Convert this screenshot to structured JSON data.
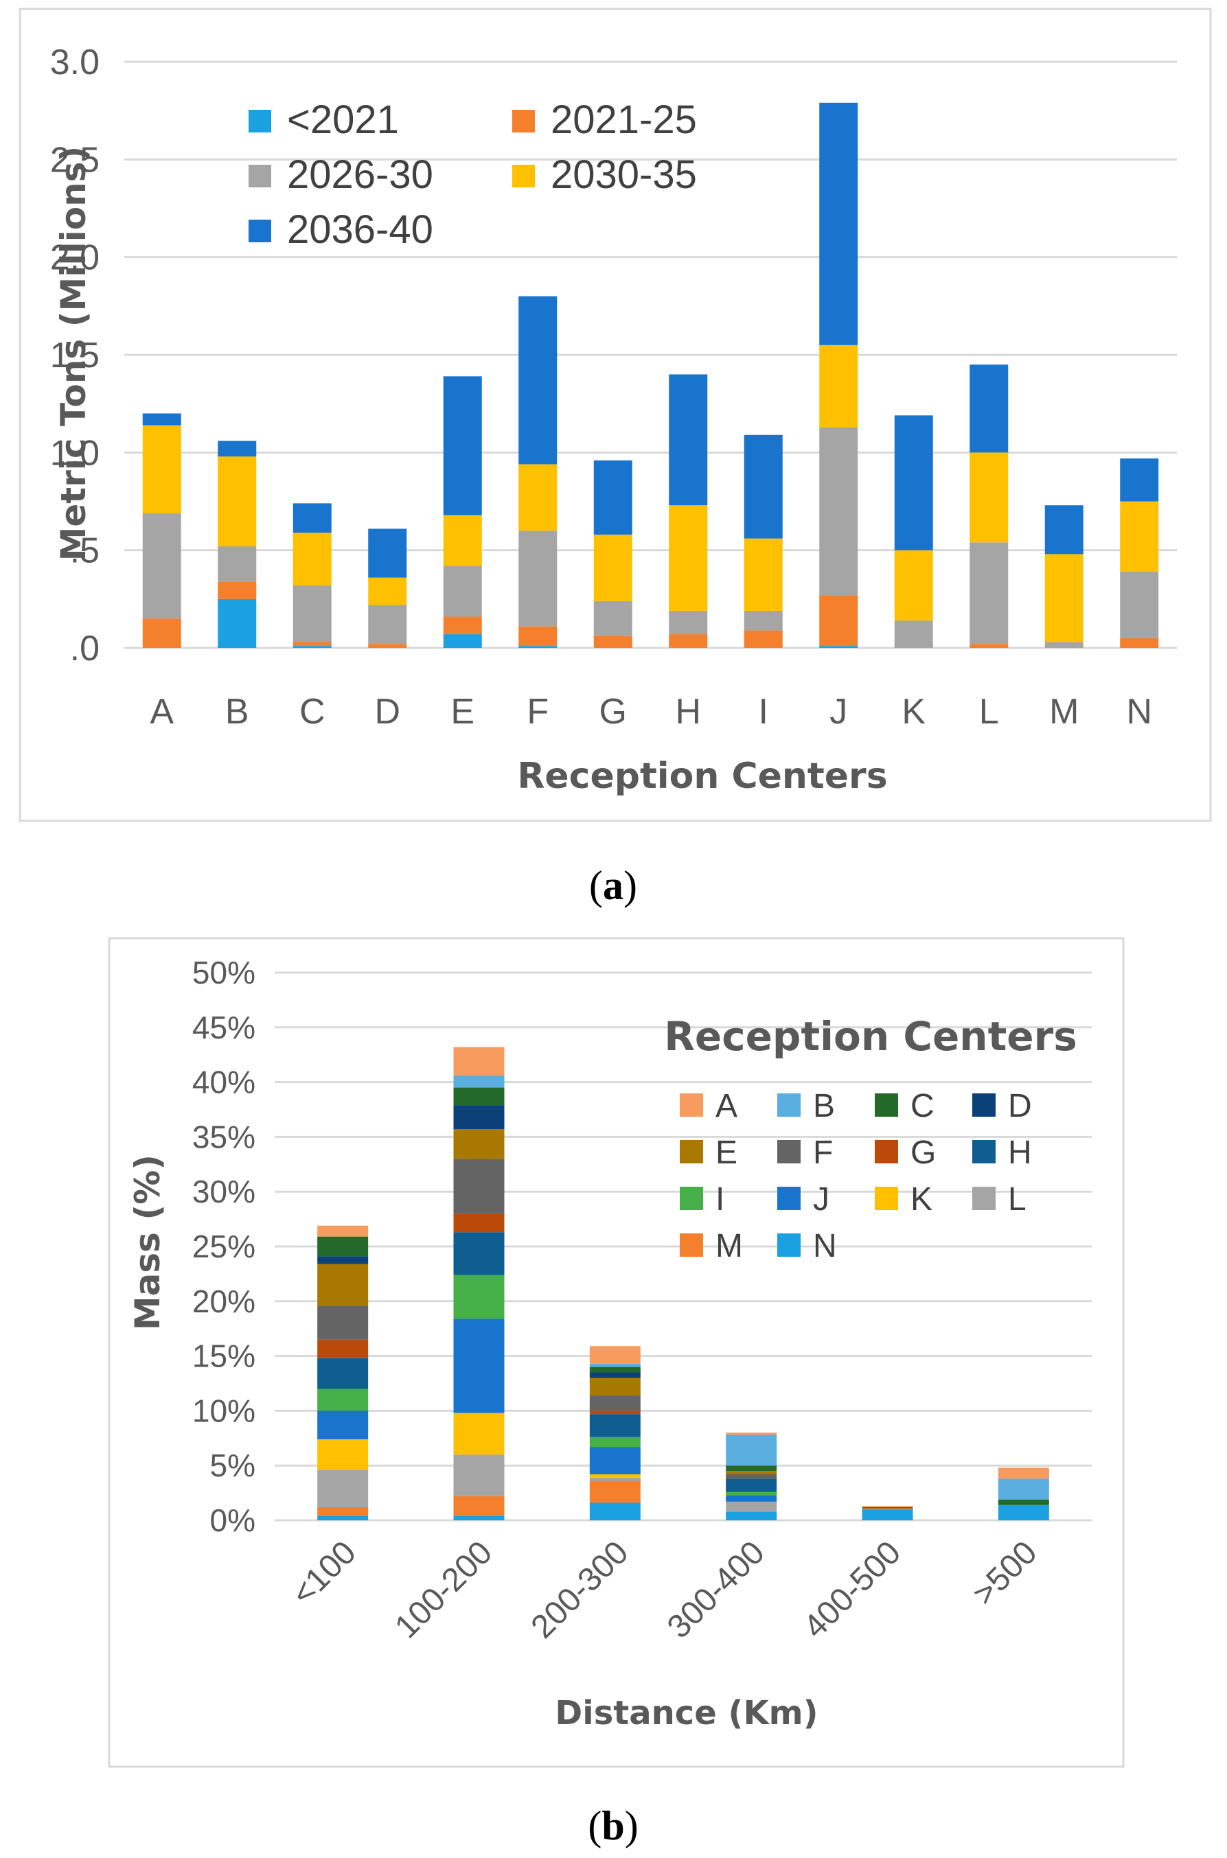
{
  "captions": {
    "a_letter": "a",
    "b_letter": "b",
    "open": "(",
    "close": ")"
  },
  "chart_data": [
    {
      "id": "a",
      "type": "bar",
      "stacked": true,
      "ylabel": "Metric Tons (Millions)",
      "xlabel": "Reception Centers",
      "ylim": [
        0,
        3.0
      ],
      "yticks": [
        ".0",
        ".5",
        "1.0",
        "1.5",
        "2.0",
        "2.5",
        "3.0"
      ],
      "grid": true,
      "legend_position": "top-left",
      "categories": [
        "A",
        "B",
        "C",
        "D",
        "E",
        "F",
        "G",
        "H",
        "I",
        "J",
        "K",
        "L",
        "M",
        "N"
      ],
      "series": [
        {
          "name": "<2021",
          "color": "#1BA1E2",
          "values": [
            0,
            0.25,
            0.01,
            0,
            0.07,
            0.01,
            0,
            0,
            0,
            0.01,
            0,
            0,
            0,
            0
          ]
        },
        {
          "name": "2021-25",
          "color": "#F47F2C",
          "values": [
            0.15,
            0.09,
            0.02,
            0.02,
            0.09,
            0.1,
            0.06,
            0.07,
            0.09,
            0.26,
            0,
            0.02,
            0,
            0.05
          ]
        },
        {
          "name": "2026-30",
          "color": "#A5A5A5",
          "values": [
            0.54,
            0.18,
            0.29,
            0.2,
            0.26,
            0.49,
            0.18,
            0.12,
            0.1,
            0.86,
            0.14,
            0.52,
            0.03,
            0.34
          ]
        },
        {
          "name": "2030-35",
          "color": "#FFC000",
          "values": [
            0.45,
            0.46,
            0.27,
            0.14,
            0.26,
            0.34,
            0.34,
            0.54,
            0.37,
            0.42,
            0.36,
            0.46,
            0.45,
            0.36
          ]
        },
        {
          "name": "2036-40",
          "color": "#1874CD",
          "values": [
            0.06,
            0.08,
            0.15,
            0.25,
            0.71,
            0.86,
            0.38,
            0.67,
            0.53,
            1.24,
            0.69,
            0.45,
            0.25,
            0.22
          ]
        }
      ]
    },
    {
      "id": "b",
      "type": "bar",
      "stacked": true,
      "ylabel": "Mass (%)",
      "xlabel": "Distance (Km)",
      "ylim": [
        0,
        50
      ],
      "yticks": [
        "0%",
        "5%",
        "10%",
        "15%",
        "20%",
        "25%",
        "30%",
        "35%",
        "40%",
        "45%",
        "50%"
      ],
      "grid": true,
      "legend_title": "Reception Centers",
      "legend_position": "top-right",
      "categories": [
        "<100",
        "100-200",
        "200-300",
        "300-400",
        "400-500",
        ">500"
      ],
      "series": [
        {
          "name": "N",
          "color": "#1BA1E2",
          "values": [
            0.4,
            0.4,
            1.6,
            0.8,
            1.0,
            1.4
          ]
        },
        {
          "name": "M",
          "color": "#F47F2C",
          "values": [
            0.8,
            1.8,
            2.0,
            0.0,
            0.1,
            0.0
          ]
        },
        {
          "name": "L",
          "color": "#A5A5A5",
          "values": [
            3.4,
            3.8,
            0.3,
            0.9,
            0.0,
            0.0
          ]
        },
        {
          "name": "K",
          "color": "#FFC000",
          "values": [
            2.8,
            3.8,
            0.3,
            0.0,
            0.0,
            0.0
          ]
        },
        {
          "name": "J",
          "color": "#1874CD",
          "values": [
            2.6,
            8.6,
            2.5,
            0.6,
            0.0,
            0.0
          ]
        },
        {
          "name": "I",
          "color": "#44B047",
          "values": [
            2.0,
            4.0,
            0.9,
            0.3,
            0.0,
            0.0
          ]
        },
        {
          "name": "H",
          "color": "#0E5E91",
          "values": [
            2.8,
            3.9,
            2.1,
            1.2,
            0.0,
            0.0
          ]
        },
        {
          "name": "G",
          "color": "#BB4A0A",
          "values": [
            1.7,
            1.7,
            0.3,
            0.0,
            0.0,
            0.0
          ]
        },
        {
          "name": "F",
          "color": "#646464",
          "values": [
            3.1,
            5.0,
            1.4,
            0.4,
            0.0,
            0.0
          ]
        },
        {
          "name": "E",
          "color": "#A87800",
          "values": [
            3.8,
            2.7,
            1.6,
            0.3,
            0.0,
            0.0
          ]
        },
        {
          "name": "D",
          "color": "#0B4178",
          "values": [
            0.7,
            2.2,
            0.5,
            0.0,
            0.0,
            0.0
          ]
        },
        {
          "name": "C",
          "color": "#23692A",
          "values": [
            1.8,
            1.6,
            0.5,
            0.5,
            0.1,
            0.5
          ]
        },
        {
          "name": "B",
          "color": "#5BAEE0",
          "values": [
            0.0,
            1.1,
            0.3,
            2.8,
            0.0,
            1.9
          ]
        },
        {
          "name": "A",
          "color": "#F79B5E",
          "values": [
            1.0,
            2.6,
            1.6,
            0.2,
            0.1,
            1.0
          ]
        }
      ],
      "legend_order": [
        "A",
        "B",
        "C",
        "D",
        "E",
        "F",
        "G",
        "H",
        "I",
        "J",
        "K",
        "L",
        "M",
        "N"
      ]
    }
  ]
}
